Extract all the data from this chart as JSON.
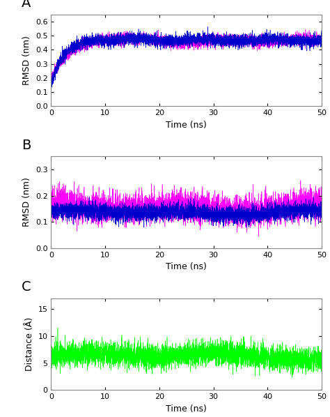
{
  "panel_A": {
    "label": "A",
    "ylabel": "RMSD (nm)",
    "xlabel": "Time (ns)",
    "xlim": [
      0,
      50
    ],
    "ylim": [
      0,
      0.65
    ],
    "yticks": [
      0,
      0.1,
      0.2,
      0.3,
      0.4,
      0.5,
      0.6
    ],
    "xticks": [
      0,
      10,
      20,
      30,
      40,
      50
    ],
    "color1": "#0000cc",
    "color2": "#ff00ff"
  },
  "panel_B": {
    "label": "B",
    "ylabel": "RMSD (nm)",
    "xlabel": "Time (ns)",
    "xlim": [
      0,
      50
    ],
    "ylim": [
      0,
      0.35
    ],
    "yticks": [
      0,
      0.1,
      0.2,
      0.3
    ],
    "xticks": [
      0,
      10,
      20,
      30,
      40,
      50
    ],
    "color1": "#0000cc",
    "color2": "#ff00ff"
  },
  "panel_C": {
    "label": "C",
    "ylabel": "Distance (Å)",
    "xlabel": "Time (ns)",
    "xlim": [
      0,
      50
    ],
    "ylim": [
      0,
      17
    ],
    "yticks": [
      0,
      5,
      10,
      15
    ],
    "xticks": [
      0,
      10,
      20,
      30,
      40,
      50
    ],
    "color1": "#00ff00"
  },
  "n_points": 5000,
  "background_color": "#ffffff",
  "linewidth": 0.4,
  "spine_color": "#888888",
  "label_fontsize": 14,
  "tick_fontsize": 8,
  "axis_fontsize": 9
}
